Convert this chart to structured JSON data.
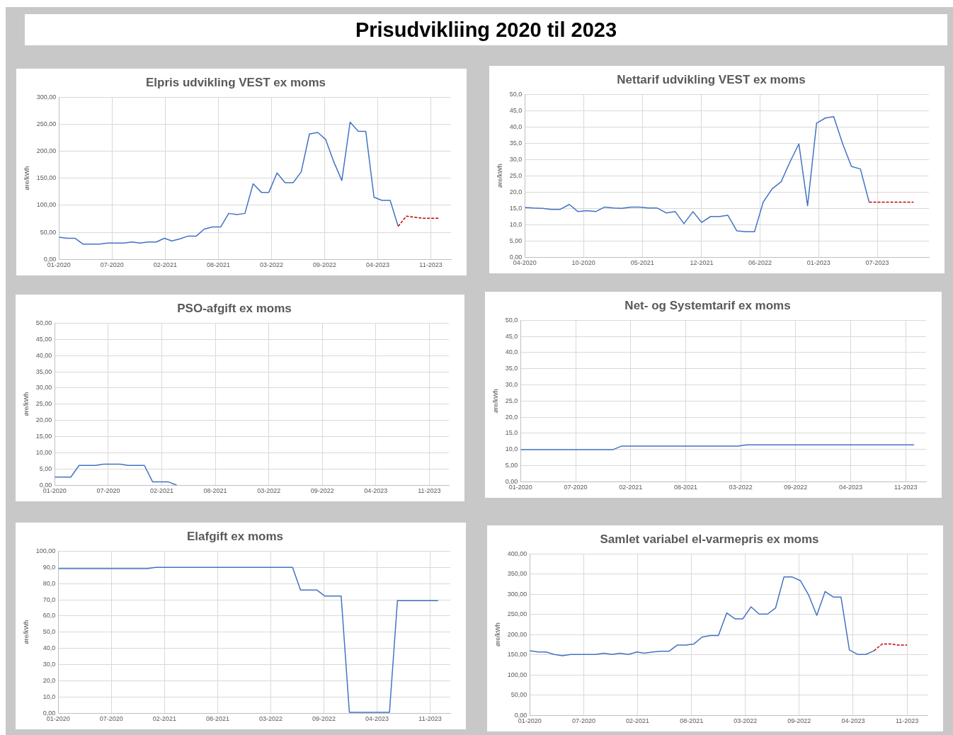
{
  "chart_data": [
    {
      "type": "other",
      "title": "Prisudvikliing 2020 til 2023"
    },
    {
      "type": "line",
      "title": "Elpris udvikling VEST ex moms",
      "ylabel": "øre/kWh",
      "grid": true,
      "marker": "none",
      "xlim": [
        "2020-01-01",
        "2024-01-16"
      ],
      "xticks": [
        {
          "value": "2020-01-01",
          "label": "01-2020"
        },
        {
          "value": "2020-07-19",
          "label": "07-2020"
        },
        {
          "value": "2021-02-04",
          "label": "02-2021"
        },
        {
          "value": "2021-08-23",
          "label": "08-2021"
        },
        {
          "value": "2022-03-11",
          "label": "03-2022"
        },
        {
          "value": "2022-09-27",
          "label": "09-2022"
        },
        {
          "value": "2023-04-15",
          "label": "04-2023"
        },
        {
          "value": "2023-11-01",
          "label": "11-2023"
        }
      ],
      "ylim": [
        0,
        300
      ],
      "yticks": [
        {
          "value": 0,
          "label": "0,00"
        },
        {
          "value": 50,
          "label": "50,00"
        },
        {
          "value": 100,
          "label": "100,00"
        },
        {
          "value": 150,
          "label": "150,00"
        },
        {
          "value": 200,
          "label": "200,00"
        },
        {
          "value": 250,
          "label": "250,00"
        },
        {
          "value": 300,
          "label": "300,00"
        }
      ],
      "series": [
        {
          "color": "#4472c4",
          "line_style": "solid",
          "x": [
            "2020-01",
            "2020-02",
            "2020-03",
            "2020-04",
            "2020-05",
            "2020-06",
            "2020-07",
            "2020-08",
            "2020-09",
            "2020-10",
            "2020-11",
            "2020-12",
            "2021-01",
            "2021-02",
            "2021-03",
            "2021-04",
            "2021-05",
            "2021-06",
            "2021-07",
            "2021-08",
            "2021-09",
            "2021-10",
            "2021-11",
            "2021-12",
            "2022-01",
            "2022-02",
            "2022-03",
            "2022-04",
            "2022-05",
            "2022-06",
            "2022-07",
            "2022-08",
            "2022-09",
            "2022-10",
            "2022-11",
            "2022-12",
            "2023-01",
            "2023-02",
            "2023-03",
            "2023-04",
            "2023-05",
            "2023-06",
            "2023-07"
          ],
          "values": [
            41,
            39,
            39,
            28,
            28,
            28,
            30,
            30,
            30,
            32,
            30,
            32,
            32,
            39,
            34,
            38,
            43,
            43,
            56,
            60,
            60,
            85,
            83,
            85,
            140,
            124,
            124,
            160,
            142,
            142,
            162,
            232,
            235,
            222,
            180,
            146,
            254,
            237,
            237,
            115,
            109,
            109,
            61
          ]
        },
        {
          "color": "#c00000",
          "line_style": "dashed",
          "x": [
            "2023-07",
            "2023-08",
            "2023-09",
            "2023-10",
            "2023-11",
            "2023-12"
          ],
          "values": [
            61,
            80,
            78,
            76,
            76,
            76
          ]
        }
      ]
    },
    {
      "type": "line",
      "title": "Nettarif udvikling VEST ex moms",
      "ylabel": "øre/kWh",
      "grid": true,
      "marker": "none",
      "xlim": [
        "2020-04-01",
        "2024-01-23"
      ],
      "xticks": [
        {
          "value": "2020-04-01",
          "label": "04-2020"
        },
        {
          "value": "2020-10-20",
          "label": "10-2020"
        },
        {
          "value": "2021-05-11",
          "label": "05-2021"
        },
        {
          "value": "2021-12-01",
          "label": "12-2021"
        },
        {
          "value": "2022-06-20",
          "label": "06-2022"
        },
        {
          "value": "2023-01-08",
          "label": "01-2023"
        },
        {
          "value": "2023-07-29",
          "label": "07-2023"
        }
      ],
      "ylim": [
        0,
        50
      ],
      "yticks": [
        {
          "value": 0,
          "label": "0,00"
        },
        {
          "value": 5,
          "label": "5,00"
        },
        {
          "value": 10,
          "label": "10,0"
        },
        {
          "value": 15,
          "label": "15,0"
        },
        {
          "value": 20,
          "label": "20,0"
        },
        {
          "value": 25,
          "label": "25,0"
        },
        {
          "value": 30,
          "label": "30,0"
        },
        {
          "value": 35,
          "label": "35,0"
        },
        {
          "value": 40,
          "label": "40,0"
        },
        {
          "value": 45,
          "label": "45,0"
        },
        {
          "value": 50,
          "label": "50,0"
        }
      ],
      "series": [
        {
          "color": "#4472c4",
          "line_style": "solid",
          "x": [
            "2020-04",
            "2020-05",
            "2020-06",
            "2020-07",
            "2020-08",
            "2020-09",
            "2020-10",
            "2020-11",
            "2020-12",
            "2021-01",
            "2021-02",
            "2021-03",
            "2021-04",
            "2021-05",
            "2021-06",
            "2021-07",
            "2021-08",
            "2021-09",
            "2021-10",
            "2021-11",
            "2021-12",
            "2022-01",
            "2022-02",
            "2022-03",
            "2022-04",
            "2022-05",
            "2022-06",
            "2022-07",
            "2022-08",
            "2022-09",
            "2022-10",
            "2022-11",
            "2022-12",
            "2023-01",
            "2023-02",
            "2023-03",
            "2023-04",
            "2023-05",
            "2023-06",
            "2023-07"
          ],
          "values": [
            15.3,
            15.1,
            15.0,
            14.7,
            14.7,
            16.2,
            14.0,
            14.3,
            14.0,
            15.4,
            15.1,
            15.0,
            15.4,
            15.4,
            15.1,
            15.1,
            13.6,
            14.0,
            10.3,
            14.0,
            10.7,
            12.5,
            12.5,
            12.9,
            8.1,
            7.8,
            7.8,
            16.9,
            21.0,
            23.2,
            29.2,
            34.8,
            15.8,
            41.2,
            42.8,
            43.2,
            34.8,
            27.9,
            27.1,
            16.9
          ]
        },
        {
          "color": "#c00000",
          "line_style": "dashed",
          "x": [
            "2023-07",
            "2023-08",
            "2023-09",
            "2023-10",
            "2023-11",
            "2023-12"
          ],
          "values": [
            16.9,
            16.9,
            16.9,
            16.9,
            16.9,
            16.9
          ]
        }
      ]
    },
    {
      "type": "line",
      "title": "PSO-afgift ex moms",
      "ylabel": "øre/kWh",
      "grid": true,
      "marker": "none",
      "xlim": [
        "2020-01-01",
        "2024-01-13"
      ],
      "xticks": [
        {
          "value": "2020-01-01",
          "label": "01-2020"
        },
        {
          "value": "2020-07-19",
          "label": "07-2020"
        },
        {
          "value": "2021-02-04",
          "label": "02-2021"
        },
        {
          "value": "2021-08-23",
          "label": "08-2021"
        },
        {
          "value": "2022-03-11",
          "label": "03-2022"
        },
        {
          "value": "2022-09-27",
          "label": "09-2022"
        },
        {
          "value": "2023-04-15",
          "label": "04-2023"
        },
        {
          "value": "2023-11-01",
          "label": "11-2023"
        }
      ],
      "ylim": [
        0,
        50
      ],
      "yticks": [
        {
          "value": 0,
          "label": "0,00"
        },
        {
          "value": 5,
          "label": "5,00"
        },
        {
          "value": 10,
          "label": "10,00"
        },
        {
          "value": 15,
          "label": "15,00"
        },
        {
          "value": 20,
          "label": "20,00"
        },
        {
          "value": 25,
          "label": "25,00"
        },
        {
          "value": 30,
          "label": "30,00"
        },
        {
          "value": 35,
          "label": "35,00"
        },
        {
          "value": 40,
          "label": "40,00"
        },
        {
          "value": 45,
          "label": "45,00"
        },
        {
          "value": 50,
          "label": "50,00"
        }
      ],
      "series": [
        {
          "color": "#4472c4",
          "line_style": "solid",
          "x": [
            "2020-01",
            "2020-02",
            "2020-03",
            "2020-04",
            "2020-05",
            "2020-06",
            "2020-07",
            "2020-08",
            "2020-09",
            "2020-10",
            "2020-11",
            "2020-12",
            "2021-01",
            "2021-02",
            "2021-03",
            "2021-04"
          ],
          "values": [
            2.5,
            2.5,
            2.5,
            6.1,
            6.1,
            6.1,
            6.5,
            6.5,
            6.5,
            6.1,
            6.1,
            6.1,
            1.0,
            1.0,
            1.0,
            0
          ]
        }
      ]
    },
    {
      "type": "line",
      "title": "Net- og Systemtarif ex moms",
      "ylabel": "øre/kWh",
      "grid": true,
      "marker": "none",
      "xlim": [
        "2020-01-01",
        "2024-01-14"
      ],
      "xticks": [
        {
          "value": "2020-01-01",
          "label": "01-2020"
        },
        {
          "value": "2020-07-19",
          "label": "07-2020"
        },
        {
          "value": "2021-02-04",
          "label": "02-2021"
        },
        {
          "value": "2021-08-23",
          "label": "08-2021"
        },
        {
          "value": "2022-03-11",
          "label": "03-2022"
        },
        {
          "value": "2022-09-27",
          "label": "09-2022"
        },
        {
          "value": "2023-04-15",
          "label": "04-2023"
        },
        {
          "value": "2023-11-01",
          "label": "11-2023"
        }
      ],
      "ylim": [
        0,
        50
      ],
      "yticks": [
        {
          "value": 0,
          "label": "0,00"
        },
        {
          "value": 5,
          "label": "5,00"
        },
        {
          "value": 10,
          "label": "10,0"
        },
        {
          "value": 15,
          "label": "15,0"
        },
        {
          "value": 20,
          "label": "20,0"
        },
        {
          "value": 25,
          "label": "25,0"
        },
        {
          "value": 30,
          "label": "30,0"
        },
        {
          "value": 35,
          "label": "35,0"
        },
        {
          "value": 40,
          "label": "40,0"
        },
        {
          "value": 45,
          "label": "45,0"
        },
        {
          "value": 50,
          "label": "50,0"
        }
      ],
      "series": [
        {
          "color": "#4472c4",
          "line_style": "solid",
          "x": [
            "2020-01",
            "2020-02",
            "2020-03",
            "2020-04",
            "2020-05",
            "2020-06",
            "2020-07",
            "2020-08",
            "2020-09",
            "2020-10",
            "2020-11",
            "2020-12",
            "2021-01",
            "2021-02",
            "2021-03",
            "2021-04",
            "2021-05",
            "2021-06",
            "2021-07",
            "2021-08",
            "2021-09",
            "2021-10",
            "2021-11",
            "2021-12",
            "2022-01",
            "2022-02",
            "2022-03",
            "2022-04",
            "2022-05",
            "2022-06",
            "2022-07",
            "2022-08",
            "2022-09",
            "2022-10",
            "2022-11",
            "2022-12",
            "2023-01",
            "2023-02",
            "2023-03",
            "2023-04",
            "2023-05",
            "2023-06",
            "2023-07",
            "2023-08",
            "2023-09",
            "2023-10",
            "2023-11",
            "2023-12"
          ],
          "values": [
            9.9,
            9.9,
            9.9,
            9.9,
            9.9,
            9.9,
            9.9,
            9.9,
            9.9,
            9.9,
            9.9,
            9.9,
            11.0,
            11.0,
            11.0,
            11.0,
            11.0,
            11.0,
            11.0,
            11.0,
            11.0,
            11.0,
            11.0,
            11.0,
            11.0,
            11.0,
            11.0,
            11.4,
            11.4,
            11.4,
            11.4,
            11.4,
            11.4,
            11.4,
            11.4,
            11.4,
            11.4,
            11.4,
            11.4,
            11.4,
            11.4,
            11.4,
            11.4,
            11.4,
            11.4,
            11.4,
            11.4,
            11.4
          ]
        }
      ]
    },
    {
      "type": "line",
      "title": "Elafgift ex moms",
      "ylabel": "øre/kWh",
      "grid": true,
      "marker": "none",
      "xlim": [
        "2020-01-01",
        "2024-01-16"
      ],
      "xticks": [
        {
          "value": "2020-01-01",
          "label": "01-2020"
        },
        {
          "value": "2020-07-19",
          "label": "07-2020"
        },
        {
          "value": "2021-02-04",
          "label": "02-2021"
        },
        {
          "value": "2021-08-23",
          "label": "08-2021"
        },
        {
          "value": "2022-03-11",
          "label": "03-2022"
        },
        {
          "value": "2022-09-27",
          "label": "09-2022"
        },
        {
          "value": "2023-04-15",
          "label": "04-2023"
        },
        {
          "value": "2023-11-01",
          "label": "11-2023"
        }
      ],
      "ylim": [
        0,
        100
      ],
      "yticks": [
        {
          "value": 0,
          "label": "0,00"
        },
        {
          "value": 10,
          "label": "10,0"
        },
        {
          "value": 20,
          "label": "20,0"
        },
        {
          "value": 30,
          "label": "30,0"
        },
        {
          "value": 40,
          "label": "40,0"
        },
        {
          "value": 50,
          "label": "50,0"
        },
        {
          "value": 60,
          "label": "60,0"
        },
        {
          "value": 70,
          "label": "70,0"
        },
        {
          "value": 80,
          "label": "80,0"
        },
        {
          "value": 90,
          "label": "90,0"
        },
        {
          "value": 100,
          "label": "100,00"
        }
      ],
      "series": [
        {
          "color": "#4472c4",
          "line_style": "solid",
          "x": [
            "2020-01",
            "2020-02",
            "2020-03",
            "2020-04",
            "2020-05",
            "2020-06",
            "2020-07",
            "2020-08",
            "2020-09",
            "2020-10",
            "2020-11",
            "2020-12",
            "2021-01",
            "2021-02",
            "2021-03",
            "2021-04",
            "2021-05",
            "2021-06",
            "2021-07",
            "2021-08",
            "2021-09",
            "2021-10",
            "2021-11",
            "2021-12",
            "2022-01",
            "2022-02",
            "2022-03",
            "2022-04",
            "2022-05",
            "2022-06",
            "2022-07",
            "2022-08",
            "2022-09",
            "2022-10",
            "2022-11",
            "2022-12",
            "2023-01",
            "2023-02",
            "2023-03",
            "2023-04",
            "2023-05",
            "2023-06",
            "2023-07",
            "2023-08",
            "2023-09",
            "2023-10",
            "2023-11",
            "2023-12"
          ],
          "values": [
            89.2,
            89.2,
            89.2,
            89.2,
            89.2,
            89.2,
            89.2,
            89.2,
            89.2,
            89.2,
            89.2,
            89.2,
            90.0,
            90.0,
            90.0,
            90.0,
            90.0,
            90.0,
            90.0,
            90.0,
            90.0,
            90.0,
            90.0,
            90.0,
            90.0,
            90.0,
            90.0,
            90.0,
            90.0,
            90.0,
            76.0,
            76.0,
            76.0,
            72.3,
            72.3,
            72.3,
            0.5,
            0.5,
            0.5,
            0.5,
            0.5,
            0.5,
            69.5,
            69.5,
            69.5,
            69.5,
            69.5,
            69.5
          ]
        }
      ]
    },
    {
      "type": "line",
      "title": "Samlet variabel el-varmepris ex moms",
      "ylabel": "øre/kWh",
      "grid": true,
      "marker": "none",
      "xlim": [
        "2020-01-01",
        "2024-01-16"
      ],
      "xticks": [
        {
          "value": "2020-01-01",
          "label": "01-2020"
        },
        {
          "value": "2020-07-19",
          "label": "07-2020"
        },
        {
          "value": "2021-02-04",
          "label": "02-2021"
        },
        {
          "value": "2021-08-23",
          "label": "08-2021"
        },
        {
          "value": "2022-03-11",
          "label": "03-2022"
        },
        {
          "value": "2022-09-27",
          "label": "09-2022"
        },
        {
          "value": "2023-04-15",
          "label": "04-2023"
        },
        {
          "value": "2023-11-01",
          "label": "11-2023"
        }
      ],
      "ylim": [
        0,
        400
      ],
      "yticks": [
        {
          "value": 0,
          "label": "0,00"
        },
        {
          "value": 50,
          "label": "50,00"
        },
        {
          "value": 100,
          "label": "100,00"
        },
        {
          "value": 150,
          "label": "150,00"
        },
        {
          "value": 200,
          "label": "200,00"
        },
        {
          "value": 250,
          "label": "250,00"
        },
        {
          "value": 300,
          "label": "300,00"
        },
        {
          "value": 350,
          "label": "350,00"
        },
        {
          "value": 400,
          "label": "400,00"
        }
      ],
      "series": [
        {
          "color": "#4472c4",
          "line_style": "solid",
          "x": [
            "2020-01",
            "2020-02",
            "2020-03",
            "2020-04",
            "2020-05",
            "2020-06",
            "2020-07",
            "2020-08",
            "2020-09",
            "2020-10",
            "2020-11",
            "2020-12",
            "2021-01",
            "2021-02",
            "2021-03",
            "2021-04",
            "2021-05",
            "2021-06",
            "2021-07",
            "2021-08",
            "2021-09",
            "2021-10",
            "2021-11",
            "2021-12",
            "2022-01",
            "2022-02",
            "2022-03",
            "2022-04",
            "2022-05",
            "2022-06",
            "2022-07",
            "2022-08",
            "2022-09",
            "2022-10",
            "2022-11",
            "2022-12",
            "2023-01",
            "2023-02",
            "2023-03",
            "2023-04",
            "2023-05",
            "2023-06",
            "2023-07"
          ],
          "values": [
            160,
            157,
            157,
            151,
            148,
            151,
            151,
            151,
            151,
            154,
            151,
            154,
            151,
            157,
            154,
            157,
            159,
            159,
            174,
            174,
            177,
            194,
            198,
            198,
            254,
            239,
            239,
            269,
            251,
            251,
            266,
            343,
            343,
            334,
            298,
            248,
            307,
            293,
            293,
            162,
            151,
            151,
            160
          ]
        },
        {
          "color": "#c00000",
          "line_style": "dashed",
          "x": [
            "2023-07",
            "2023-08",
            "2023-09",
            "2023-10",
            "2023-11"
          ],
          "values": [
            160,
            177,
            177,
            174,
            174
          ]
        }
      ]
    }
  ]
}
